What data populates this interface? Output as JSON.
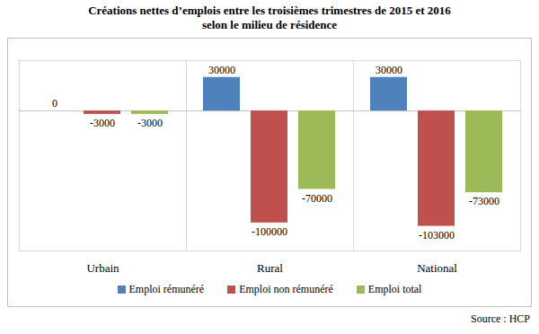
{
  "chart_data": {
    "type": "bar",
    "title": "Créations nettes d’emplois entre les troisièmes trimestres de 2015 et 2016",
    "subtitle": "selon le milieu de résidence",
    "caption": "Source : HCP",
    "categories": [
      "Urbain",
      "Rural",
      "National"
    ],
    "series": [
      {
        "name": "Emploi rémunéré",
        "color": "#4f81bd",
        "values": [
          0,
          30000,
          30000
        ]
      },
      {
        "name": "Emploi non rémunéré",
        "color": "#c0504d",
        "values": [
          -3000,
          -100000,
          -103000
        ]
      },
      {
        "name": "Emploi total",
        "color": "#9bbb59",
        "values": [
          -3000,
          -70000,
          -73000
        ]
      }
    ],
    "ylim": [
      -125000,
      45000
    ],
    "yticks": [],
    "grid": false,
    "data_labels": true,
    "legend": "bottom",
    "tick_labels": "x"
  }
}
